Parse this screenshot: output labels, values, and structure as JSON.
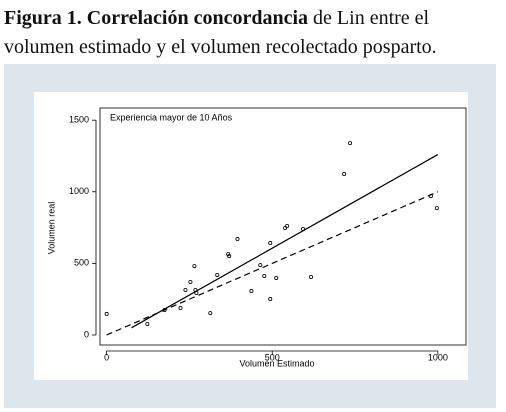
{
  "caption": {
    "bold": "Figura 1. Correlación concordancia",
    "rest": "de Lin entre el volumen estimado y el volumen recolectado posparto."
  },
  "chart_data": {
    "type": "scatter",
    "annotation": "Experiencia mayor de 10 Años",
    "xlabel": "Volumen Estimado",
    "ylabel": "Volumen real",
    "xlim": [
      -20,
      1085
    ],
    "ylim": [
      -70,
      1585
    ],
    "xticks": [
      0,
      500,
      1000
    ],
    "yticks": [
      0,
      500,
      1000,
      1500
    ],
    "grid": false,
    "points": {
      "color": "#000000",
      "x": [
        0,
        123,
        175,
        223,
        238,
        253,
        265,
        268,
        271,
        313,
        334,
        367,
        370,
        395,
        437,
        464,
        476,
        494,
        494,
        512,
        539,
        545,
        593,
        617,
        717,
        735,
        979,
        997
      ],
      "y": [
        147,
        77,
        174,
        188,
        314,
        370,
        481,
        314,
        293,
        153,
        419,
        565,
        551,
        670,
        307,
        488,
        412,
        642,
        251,
        398,
        747,
        761,
        740,
        405,
        1124,
        1340,
        970,
        886
      ]
    },
    "lines": [
      {
        "style": "solid",
        "color": "#000000",
        "x": [
          75,
          1000
        ],
        "y": [
          50,
          1260
        ]
      },
      {
        "style": "dashed",
        "color": "#000000",
        "x": [
          0,
          1000
        ],
        "y": [
          0,
          1000
        ]
      }
    ]
  }
}
